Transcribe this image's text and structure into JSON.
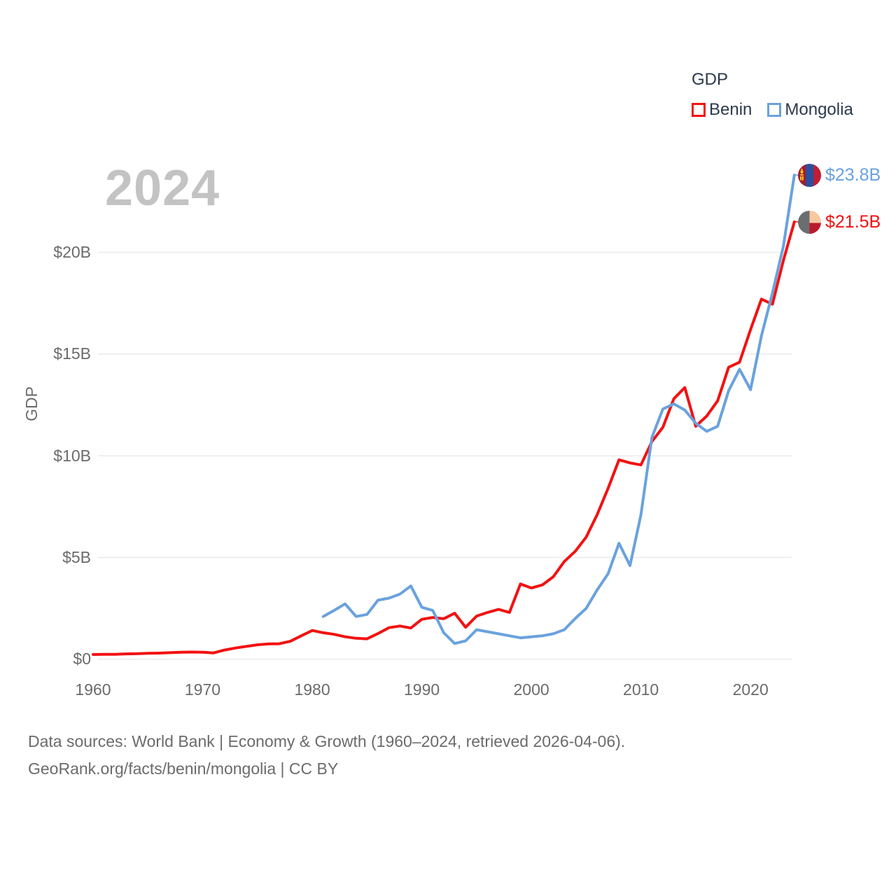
{
  "watermark_year": "2024",
  "legend": {
    "title": "GDP",
    "items": [
      {
        "label": "Benin",
        "color": "#f31111"
      },
      {
        "label": "Mongolia",
        "color": "#6aa2dd"
      }
    ]
  },
  "end_labels": [
    {
      "series": "Mongolia",
      "label": "$23.8B",
      "color": "#6aa2dd",
      "flag_icon": "mongolia-flag"
    },
    {
      "series": "Benin",
      "label": "$21.5B",
      "color": "#f31111",
      "flag_icon": "benin-flag"
    }
  ],
  "footer": {
    "line1": "Data sources: World Bank | Economy & Growth (1960–2024, retrieved 2026-04-06).",
    "line2": "GeoRank.org/facts/benin/mongolia | CC BY"
  },
  "chart_data": {
    "type": "line",
    "title": "GDP",
    "xlabel": "",
    "ylabel": "GDP",
    "grid": true,
    "legend_position": "top-right",
    "xlim": [
      1960,
      2024
    ],
    "ylim": [
      0,
      24.5
    ],
    "x_ticks": [
      {
        "label": "1960",
        "value": 1960
      },
      {
        "label": "1970",
        "value": 1970
      },
      {
        "label": "1980",
        "value": 1980
      },
      {
        "label": "1990",
        "value": 1990
      },
      {
        "label": "2000",
        "value": 2000
      },
      {
        "label": "2010",
        "value": 2010
      },
      {
        "label": "2020",
        "value": 2020
      }
    ],
    "y_ticks": [
      {
        "label": "$0",
        "value": 0
      },
      {
        "label": "$5B",
        "value": 5
      },
      {
        "label": "$10B",
        "value": 10
      },
      {
        "label": "$15B",
        "value": 15
      },
      {
        "label": "$20B",
        "value": 20
      }
    ],
    "x": [
      1960,
      1961,
      1962,
      1963,
      1964,
      1965,
      1966,
      1967,
      1968,
      1969,
      1970,
      1971,
      1972,
      1973,
      1974,
      1975,
      1976,
      1977,
      1978,
      1979,
      1980,
      1981,
      1982,
      1983,
      1984,
      1985,
      1986,
      1987,
      1988,
      1989,
      1990,
      1991,
      1992,
      1993,
      1994,
      1995,
      1996,
      1997,
      1998,
      1999,
      2000,
      2001,
      2002,
      2003,
      2004,
      2005,
      2006,
      2007,
      2008,
      2009,
      2010,
      2011,
      2012,
      2013,
      2014,
      2015,
      2016,
      2017,
      2018,
      2019,
      2020,
      2021,
      2022,
      2023,
      2024
    ],
    "series": [
      {
        "name": "Benin",
        "color": "#f31111",
        "unit": "billion USD",
        "values": [
          0.23,
          0.24,
          0.24,
          0.26,
          0.27,
          0.29,
          0.3,
          0.32,
          0.34,
          0.35,
          0.34,
          0.31,
          0.45,
          0.55,
          0.63,
          0.71,
          0.75,
          0.76,
          0.88,
          1.15,
          1.41,
          1.3,
          1.22,
          1.1,
          1.03,
          1.0,
          1.26,
          1.55,
          1.63,
          1.53,
          1.96,
          2.05,
          1.99,
          2.26,
          1.57,
          2.12,
          2.3,
          2.45,
          2.3,
          3.7,
          3.5,
          3.65,
          4.05,
          4.8,
          5.3,
          6.0,
          7.1,
          8.4,
          9.8,
          9.65,
          9.55,
          10.7,
          11.4,
          12.8,
          13.35,
          11.45,
          11.95,
          12.7,
          14.35,
          14.6,
          16.2,
          17.7,
          17.45,
          19.6,
          21.5
        ]
      },
      {
        "name": "Mongolia",
        "color": "#6aa2dd",
        "unit": "billion USD",
        "values": [
          null,
          null,
          null,
          null,
          null,
          null,
          null,
          null,
          null,
          null,
          null,
          null,
          null,
          null,
          null,
          null,
          null,
          null,
          null,
          null,
          null,
          2.1,
          2.4,
          2.72,
          2.1,
          2.2,
          2.9,
          3.0,
          3.2,
          3.6,
          2.55,
          2.4,
          1.3,
          0.77,
          0.9,
          1.45,
          1.35,
          1.25,
          1.15,
          1.05,
          1.1,
          1.15,
          1.25,
          1.45,
          2.0,
          2.5,
          3.4,
          4.2,
          5.7,
          4.6,
          7.1,
          10.9,
          12.3,
          12.55,
          12.25,
          11.6,
          11.2,
          11.45,
          13.2,
          14.25,
          13.25,
          15.9,
          18.0,
          20.3,
          23.8
        ]
      }
    ],
    "end_values": {
      "Mongolia": "$23.8B",
      "Benin": "$21.5B"
    }
  }
}
